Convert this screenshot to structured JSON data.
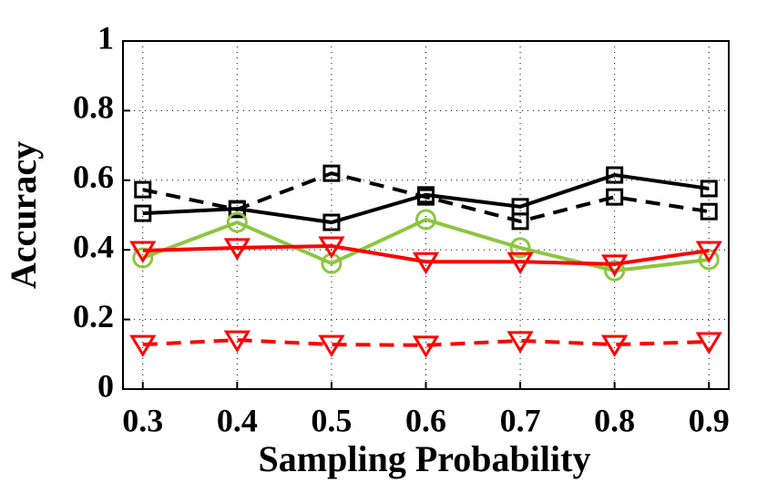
{
  "chart_data": {
    "type": "line",
    "xlabel": "Sampling Probability",
    "ylabel": "Accuracy",
    "x": [
      0.3,
      0.4,
      0.5,
      0.6,
      0.7,
      0.8,
      0.9
    ],
    "series": [
      {
        "color": "#000000",
        "linestyle": "solid",
        "marker": "square",
        "values": [
          0.505,
          0.518,
          0.479,
          0.558,
          0.524,
          0.615,
          0.576
        ]
      },
      {
        "color": "#000000",
        "linestyle": "dashed",
        "marker": "square",
        "values": [
          0.573,
          0.516,
          0.62,
          0.552,
          0.482,
          0.552,
          0.51
        ]
      },
      {
        "color": "#8dc63f",
        "linestyle": "solid",
        "marker": "circle",
        "values": [
          0.377,
          0.479,
          0.361,
          0.487,
          0.406,
          0.34,
          0.372
        ]
      },
      {
        "color": "#ff0000",
        "linestyle": "solid",
        "marker": "triangle-down",
        "values": [
          0.398,
          0.406,
          0.411,
          0.366,
          0.366,
          0.359,
          0.398
        ]
      },
      {
        "color": "#ff0000",
        "linestyle": "dashed",
        "marker": "triangle-down",
        "values": [
          0.128,
          0.141,
          0.128,
          0.126,
          0.139,
          0.128,
          0.136
        ]
      }
    ],
    "xlim": [
      0.279,
      0.921
    ],
    "xticks": [
      0.3,
      0.4,
      0.5,
      0.6,
      0.7,
      0.8,
      0.9
    ],
    "ylim": [
      0,
      1
    ],
    "yticks": [
      0,
      0.2,
      0.4,
      0.6,
      0.8,
      1
    ],
    "grid": true
  }
}
